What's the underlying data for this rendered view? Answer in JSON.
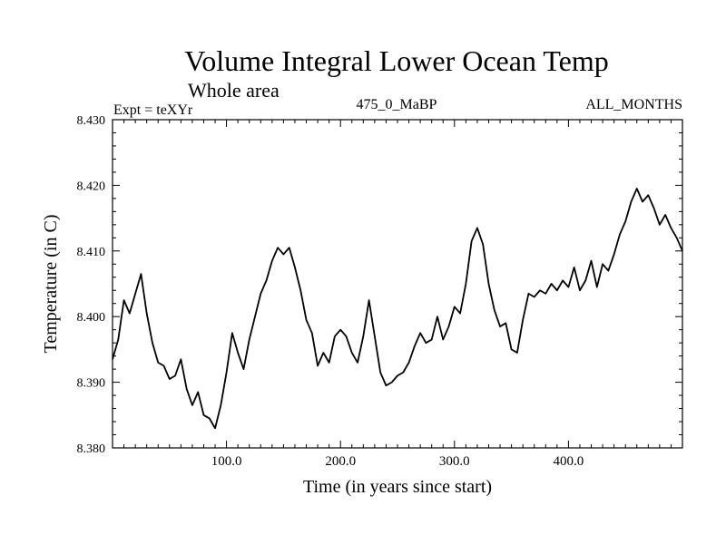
{
  "chart_data": {
    "type": "line",
    "title": "Volume Integral Lower Ocean Temp",
    "subtitle": "Whole area",
    "header_left": "Expt = teXYr",
    "header_center": "475_0_MaBP",
    "header_right": "ALL_MONTHS",
    "xlabel": "Time (in years since start)",
    "ylabel": "Temperature (in C)",
    "xlim": [
      0,
      500
    ],
    "ylim": [
      8.38,
      8.43
    ],
    "xticks": [
      {
        "value": 100,
        "label": "100.0"
      },
      {
        "value": 200,
        "label": "200.0"
      },
      {
        "value": 300,
        "label": "300.0"
      },
      {
        "value": 400,
        "label": "400.0"
      }
    ],
    "yticks": [
      {
        "value": 8.38,
        "label": "8.380"
      },
      {
        "value": 8.39,
        "label": "8.390"
      },
      {
        "value": 8.4,
        "label": "8.400"
      },
      {
        "value": 8.41,
        "label": "8.410"
      },
      {
        "value": 8.42,
        "label": "8.420"
      },
      {
        "value": 8.43,
        "label": "8.430"
      }
    ],
    "grid": false,
    "series": [
      {
        "color": "#000000",
        "x": [
          0,
          5,
          10,
          15,
          20,
          25,
          30,
          35,
          40,
          45,
          50,
          55,
          60,
          65,
          70,
          75,
          80,
          85,
          90,
          95,
          100,
          105,
          110,
          115,
          120,
          125,
          130,
          135,
          140,
          145,
          150,
          155,
          160,
          165,
          170,
          175,
          180,
          185,
          190,
          195,
          200,
          205,
          210,
          215,
          220,
          225,
          230,
          235,
          240,
          245,
          250,
          255,
          260,
          265,
          270,
          275,
          280,
          285,
          290,
          295,
          300,
          305,
          310,
          315,
          320,
          325,
          330,
          335,
          340,
          345,
          350,
          355,
          360,
          365,
          370,
          375,
          380,
          385,
          390,
          395,
          400,
          405,
          410,
          415,
          420,
          425,
          430,
          435,
          440,
          445,
          450,
          455,
          460,
          465,
          470,
          475,
          480,
          485,
          490,
          495,
          500
        ],
        "values": [
          8.3935,
          8.3965,
          8.4025,
          8.4005,
          8.4035,
          8.4065,
          8.4005,
          8.396,
          8.393,
          8.3925,
          8.3905,
          8.391,
          8.3935,
          8.389,
          8.3865,
          8.3885,
          8.385,
          8.3845,
          8.383,
          8.3865,
          8.3915,
          8.3975,
          8.3945,
          8.392,
          8.3965,
          8.4,
          8.4035,
          8.4055,
          8.4085,
          8.4105,
          8.4095,
          8.4105,
          8.4075,
          8.404,
          8.3995,
          8.3975,
          8.3925,
          8.3945,
          8.393,
          8.397,
          8.398,
          8.397,
          8.3945,
          8.393,
          8.397,
          8.4025,
          8.397,
          8.3915,
          8.3895,
          8.39,
          8.391,
          8.3915,
          8.393,
          8.3955,
          8.3975,
          8.396,
          8.3965,
          8.4,
          8.3965,
          8.3985,
          8.4015,
          8.4005,
          8.405,
          8.4115,
          8.4135,
          8.411,
          8.405,
          8.401,
          8.3985,
          8.399,
          8.395,
          8.3945,
          8.3995,
          8.4035,
          8.403,
          8.404,
          8.4035,
          8.405,
          8.404,
          8.4055,
          8.4045,
          8.4075,
          8.404,
          8.4055,
          8.4085,
          8.4045,
          8.408,
          8.407,
          8.4095,
          8.4125,
          8.4145,
          8.4175,
          8.4195,
          8.4175,
          8.4185,
          8.4165,
          8.414,
          8.4155,
          8.4135,
          8.412,
          8.41
        ]
      }
    ]
  }
}
